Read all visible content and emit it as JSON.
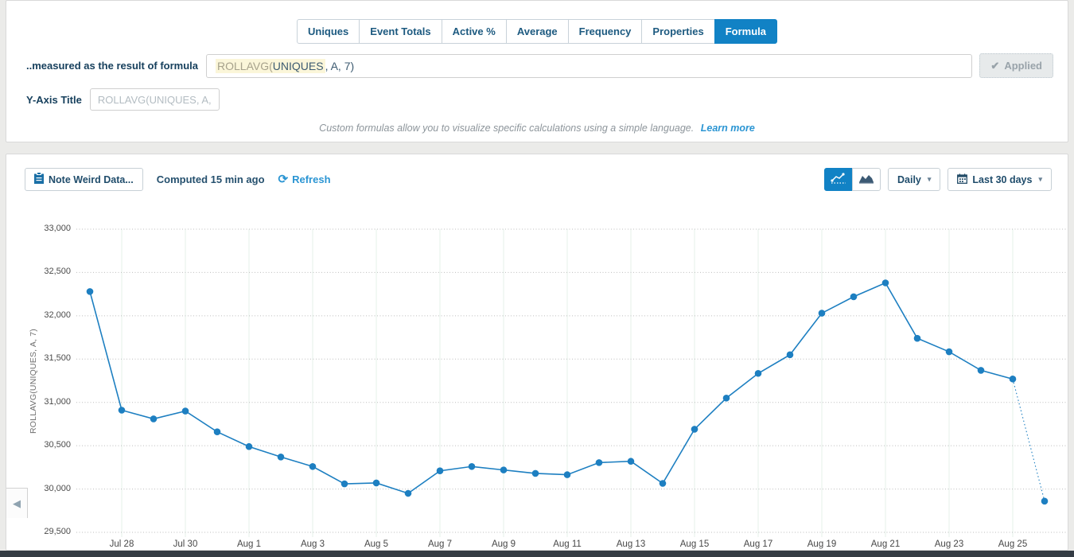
{
  "tabs": {
    "items": [
      "Uniques",
      "Event Totals",
      "Active %",
      "Average",
      "Frequency",
      "Properties",
      "Formula"
    ],
    "active": "Formula"
  },
  "formula_row": {
    "label": "..measured as the result of formula",
    "value_parts": {
      "func": "ROLLAVG(",
      "arg": "UNIQUES",
      "rest": ", A, 7)"
    },
    "applied_label": "Applied"
  },
  "yaxis_row": {
    "label": "Y-Axis Title",
    "placeholder": "ROLLAVG(UNIQUES, A,"
  },
  "help": {
    "text": "Custom formulas allow you to visualize specific calculations using a simple language.",
    "link": "Learn more"
  },
  "toolbar": {
    "note_button": "Note Weird Data...",
    "computed": "Computed 15 min ago",
    "refresh": "Refresh",
    "interval": "Daily",
    "range": "Last 30 days"
  },
  "icons": {
    "check": "✔",
    "chevron": "▾",
    "refresh": "⟳",
    "collapse": "◀"
  },
  "colors": {
    "accent_blue": "#1182c5",
    "link_blue": "#2b95d3",
    "navy_text": "#1f4c6b"
  },
  "chart_data": {
    "type": "line",
    "title": "",
    "xlabel": "",
    "ylabel": "ROLLAVG(UNIQUES, A, 7)",
    "ylim": [
      29500,
      33000
    ],
    "grid": true,
    "legend": false,
    "line_color": "#1d7fc1",
    "grid_color": "#bdbdbd",
    "grid_vertical_color": "#e4f1ea",
    "x": [
      "Jul 27",
      "Jul 28",
      "Jul 29",
      "Jul 30",
      "Jul 31",
      "Aug 1",
      "Aug 2",
      "Aug 3",
      "Aug 4",
      "Aug 5",
      "Aug 6",
      "Aug 7",
      "Aug 8",
      "Aug 9",
      "Aug 10",
      "Aug 11",
      "Aug 12",
      "Aug 13",
      "Aug 14",
      "Aug 15",
      "Aug 16",
      "Aug 17",
      "Aug 18",
      "Aug 19",
      "Aug 20",
      "Aug 21",
      "Aug 22",
      "Aug 23",
      "Aug 24",
      "Aug 25",
      "Aug 26"
    ],
    "values": [
      32280,
      30910,
      30810,
      30900,
      30660,
      30490,
      30370,
      30260,
      30060,
      30070,
      29950,
      30210,
      30260,
      30220,
      30180,
      30165,
      30305,
      30320,
      30065,
      30690,
      31050,
      31335,
      31550,
      32030,
      32220,
      32380,
      31740,
      31585,
      31370,
      31270,
      29860
    ],
    "last_segment_dotted": true,
    "y_ticks": [
      33000,
      32500,
      32000,
      31500,
      31000,
      30500,
      30000,
      29500
    ],
    "y_tick_labels": [
      "33,000",
      "32,500",
      "32,000",
      "31,500",
      "31,000",
      "30,500",
      "30,000",
      "29,500"
    ],
    "x_tick_labels": [
      "Jul 28",
      "Jul 30",
      "Aug 1",
      "Aug 3",
      "Aug 5",
      "Aug 7",
      "Aug 9",
      "Aug 11",
      "Aug 13",
      "Aug 15",
      "Aug 17",
      "Aug 19",
      "Aug 21",
      "Aug 23",
      "Aug 25"
    ]
  }
}
